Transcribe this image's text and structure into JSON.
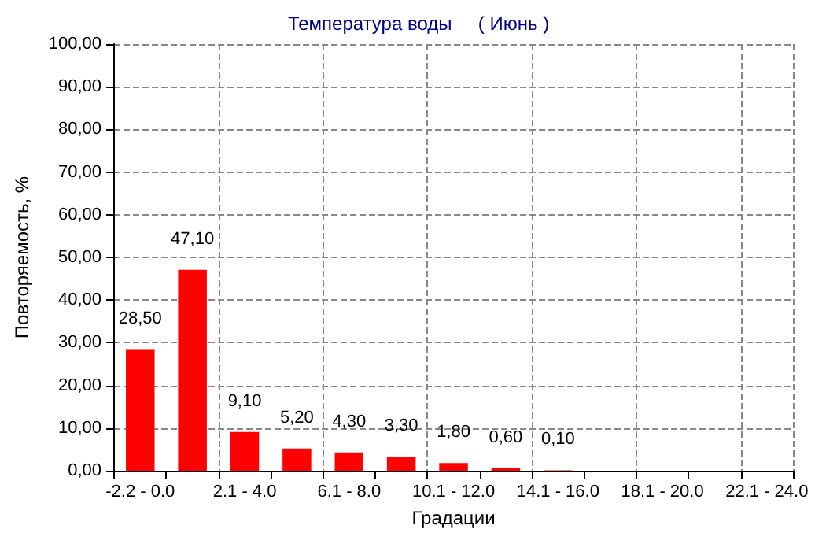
{
  "chart_data": {
    "type": "bar",
    "title": "Температура воды     ( Июнь )",
    "xlabel": "Градации",
    "ylabel": "Повторяемость, %",
    "categories": [
      "-2.2 - 0.0",
      null,
      "2.1 - 4.0",
      null,
      "6.1 - 8.0",
      null,
      "10.1 - 12.0",
      null,
      "14.1 - 16.0",
      null,
      "18.1 - 20.0",
      null,
      "22.1 - 24.0"
    ],
    "values": [
      28.5,
      47.1,
      9.1,
      5.2,
      4.3,
      3.3,
      1.8,
      0.6,
      0.1,
      0,
      0,
      0,
      0
    ],
    "value_labels": [
      "28,50",
      "47,10",
      "9,10",
      "5,20",
      "4,30",
      "3,30",
      "1,80",
      "0,60",
      "0,10",
      null,
      null,
      null,
      null
    ],
    "color": "#ff0000",
    "ylim": [
      0,
      100
    ],
    "yticks": [
      {
        "value": 0,
        "label": "0,00"
      },
      {
        "value": 10,
        "label": "10,00"
      },
      {
        "value": 20,
        "label": "20,00"
      },
      {
        "value": 30,
        "label": "30,00"
      },
      {
        "value": 40,
        "label": "40,00"
      },
      {
        "value": 50,
        "label": "50,00"
      },
      {
        "value": 60,
        "label": "60,00"
      },
      {
        "value": 70,
        "label": "70,00"
      },
      {
        "value": 80,
        "label": "80,00"
      },
      {
        "value": 90,
        "label": "90,00"
      },
      {
        "value": 100,
        "label": "100,00"
      }
    ],
    "grid": true
  }
}
